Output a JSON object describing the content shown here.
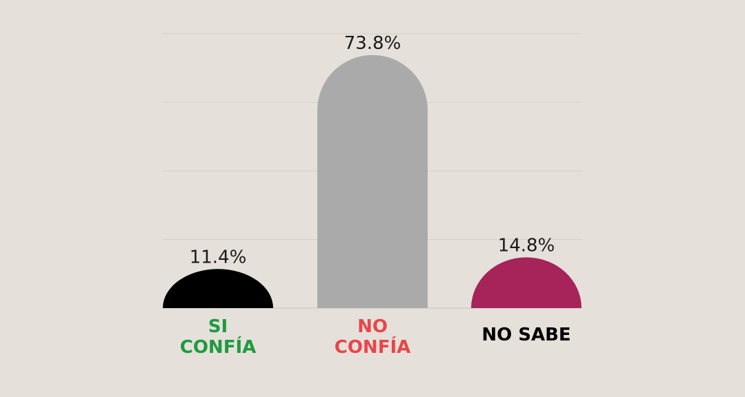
{
  "chart_data": {
    "type": "bar",
    "categories": [
      "SI CONFÍA",
      "NO CONFÍA",
      "NO SABE"
    ],
    "category_lines": [
      [
        "SI",
        "CONFÍA"
      ],
      [
        "NO",
        "CONFÍA"
      ],
      [
        "NO SABE"
      ]
    ],
    "values": [
      11.4,
      73.8,
      14.8
    ],
    "value_labels": [
      "11.4%",
      "73.8%",
      "14.8%"
    ],
    "bar_colors": [
      "#000000",
      "#aaaaaa",
      "#a6245a"
    ],
    "label_colors": [
      "#1e9a40",
      "#e8454a",
      "#000000"
    ],
    "ylim": [
      0,
      80
    ],
    "grid": true,
    "title": "",
    "xlabel": "",
    "ylabel": ""
  }
}
